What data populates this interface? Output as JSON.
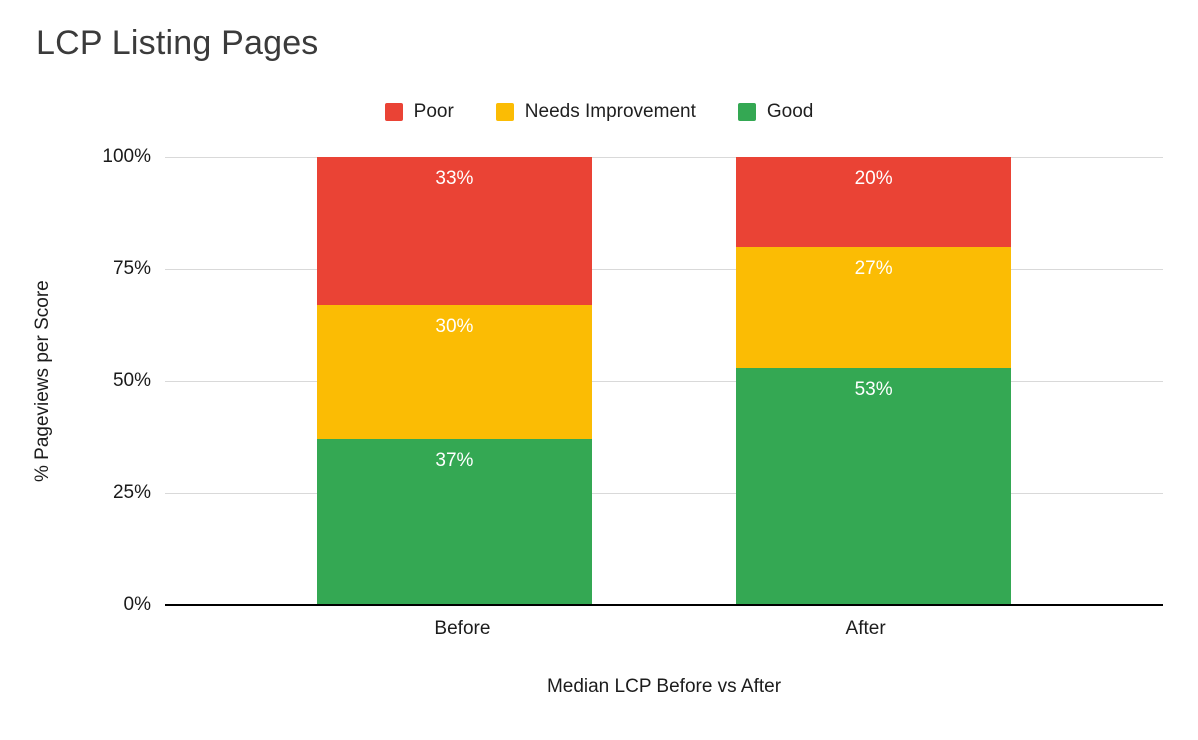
{
  "title": "LCP Listing Pages",
  "chart_data": {
    "type": "bar",
    "stacked": true,
    "title": "LCP Listing Pages",
    "xlabel": "Median LCP Before vs After",
    "ylabel": "% Pageviews per Score",
    "ylim": [
      0,
      100
    ],
    "grid": true,
    "legend_position": "top",
    "categories": [
      "Before",
      "After"
    ],
    "yticks": [
      {
        "value": 0,
        "label": "0%"
      },
      {
        "value": 25,
        "label": "25%"
      },
      {
        "value": 50,
        "label": "50%"
      },
      {
        "value": 75,
        "label": "75%"
      },
      {
        "value": 100,
        "label": "100%"
      }
    ],
    "series": [
      {
        "name": "Poor",
        "color": "#EA4335",
        "values": [
          33,
          20
        ],
        "labels": [
          "33%",
          "20%"
        ]
      },
      {
        "name": "Needs Improvement",
        "color": "#FBBC04",
        "values": [
          30,
          27
        ],
        "labels": [
          "30%",
          "27%"
        ]
      },
      {
        "name": "Good",
        "color": "#34A853",
        "values": [
          37,
          53
        ],
        "labels": [
          "37%",
          "53%"
        ]
      }
    ]
  }
}
